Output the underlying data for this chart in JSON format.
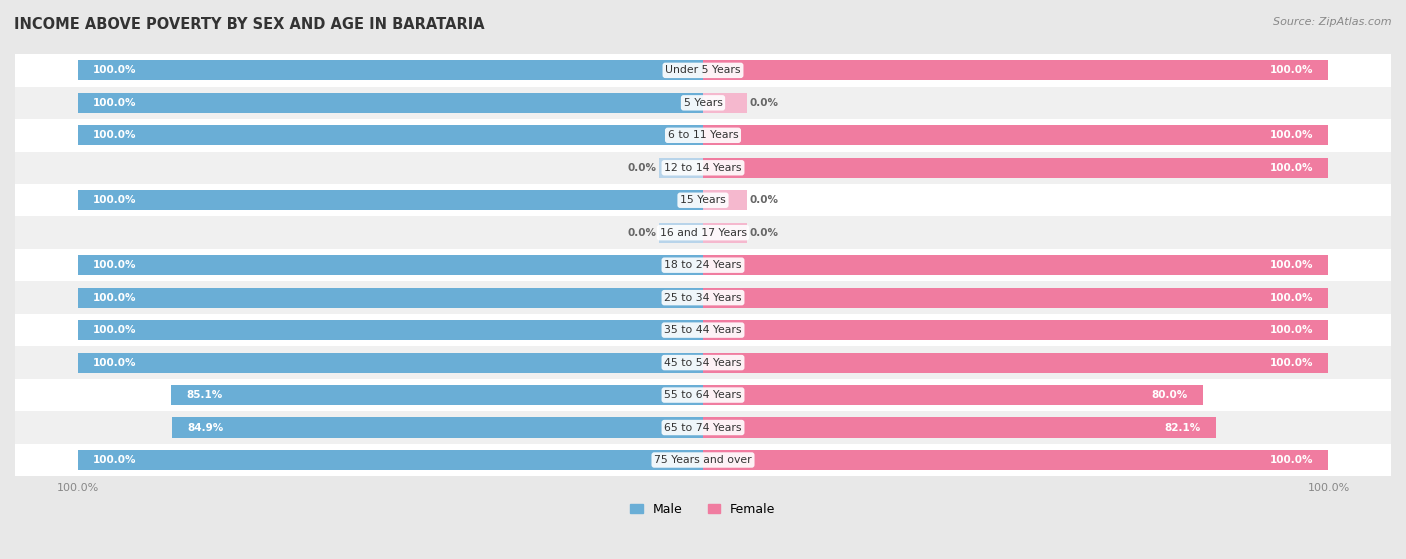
{
  "title": "INCOME ABOVE POVERTY BY SEX AND AGE IN BARATARIA",
  "source": "Source: ZipAtlas.com",
  "categories": [
    "Under 5 Years",
    "5 Years",
    "6 to 11 Years",
    "12 to 14 Years",
    "15 Years",
    "16 and 17 Years",
    "18 to 24 Years",
    "25 to 34 Years",
    "35 to 44 Years",
    "45 to 54 Years",
    "55 to 64 Years",
    "65 to 74 Years",
    "75 Years and over"
  ],
  "male_values": [
    100.0,
    100.0,
    100.0,
    0.0,
    100.0,
    0.0,
    100.0,
    100.0,
    100.0,
    100.0,
    85.1,
    84.9,
    100.0
  ],
  "female_values": [
    100.0,
    0.0,
    100.0,
    100.0,
    0.0,
    0.0,
    100.0,
    100.0,
    100.0,
    100.0,
    80.0,
    82.1,
    100.0
  ],
  "male_color": "#6aaed6",
  "female_color": "#f07ca0",
  "male_light_color": "#b8d4ea",
  "female_light_color": "#f5b8ce",
  "bg_color": "#e8e8e8",
  "row_color_even": "#ffffff",
  "row_color_odd": "#f0f0f0",
  "label_white": "#ffffff",
  "label_dark": "#666666",
  "axis_label_color": "#888888",
  "bar_height": 0.62,
  "figsize": [
    14.06,
    5.59
  ],
  "dpi": 100,
  "stub_size": 7.0
}
